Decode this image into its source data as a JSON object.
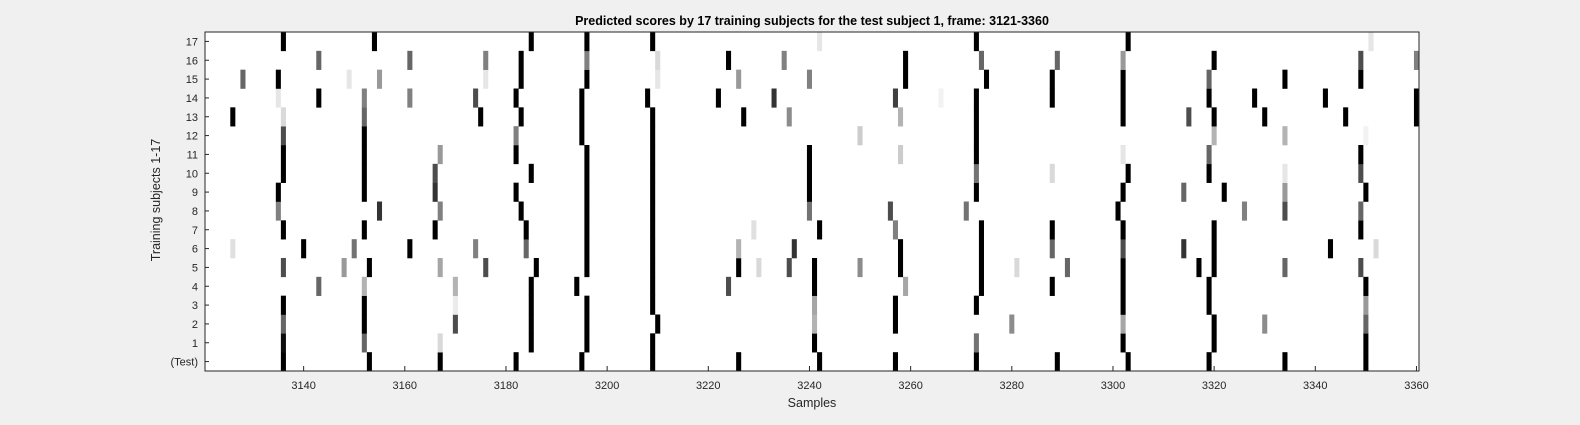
{
  "chart_data": {
    "type": "heatmap",
    "title": "Predicted scores by 17 training subjects for the test subject 1, frame: 3121-3360",
    "xlabel": "Samples",
    "ylabel": "Training subjects 1-17",
    "xlim": [
      3121,
      3360
    ],
    "x_ticks": [
      3140,
      3160,
      3180,
      3200,
      3220,
      3240,
      3260,
      3280,
      3300,
      3320,
      3340,
      3360
    ],
    "rows": [
      "(Test)",
      "1",
      "2",
      "3",
      "4",
      "5",
      "6",
      "7",
      "8",
      "9",
      "10",
      "11",
      "12",
      "13",
      "14",
      "15",
      "16",
      "17"
    ],
    "colormap": "gray (1 = black, 0 = white)",
    "background_color": "#ffffff",
    "cells": [
      {
        "row": "(Test)",
        "marks": [
          [
            3136,
            1
          ],
          [
            3153,
            1
          ],
          [
            3167,
            1
          ],
          [
            3182,
            1
          ],
          [
            3195,
            1
          ],
          [
            3209,
            1
          ],
          [
            3226,
            1
          ],
          [
            3242,
            1
          ],
          [
            3257,
            1
          ],
          [
            3273,
            1
          ],
          [
            3289,
            1
          ],
          [
            3303,
            1
          ],
          [
            3319,
            1
          ],
          [
            3334,
            1
          ],
          [
            3350,
            1
          ]
        ]
      },
      {
        "row": "1",
        "marks": [
          [
            3136,
            0.95
          ],
          [
            3152,
            0.6
          ],
          [
            3167,
            0.15
          ],
          [
            3185,
            1
          ],
          [
            3196,
            1
          ],
          [
            3209,
            1
          ],
          [
            3241,
            1
          ],
          [
            3273,
            0.55
          ],
          [
            3302,
            1
          ],
          [
            3320,
            1
          ],
          [
            3350,
            1
          ]
        ]
      },
      {
        "row": "2",
        "marks": [
          [
            3136,
            0.6
          ],
          [
            3152,
            1
          ],
          [
            3170,
            0.7
          ],
          [
            3185,
            1
          ],
          [
            3196,
            1
          ],
          [
            3210,
            1
          ],
          [
            3241,
            0.3
          ],
          [
            3257,
            1
          ],
          [
            3280,
            0.45
          ],
          [
            3302,
            0.35
          ],
          [
            3320,
            1
          ],
          [
            3330,
            0.45
          ],
          [
            3350,
            0.6
          ]
        ]
      },
      {
        "row": "3",
        "marks": [
          [
            3136,
            1
          ],
          [
            3152,
            1
          ],
          [
            3170,
            0.08
          ],
          [
            3185,
            1
          ],
          [
            3196,
            1
          ],
          [
            3209,
            1
          ],
          [
            3241,
            0.35
          ],
          [
            3257,
            1
          ],
          [
            3273,
            1
          ],
          [
            3302,
            1
          ],
          [
            3319,
            1
          ],
          [
            3350,
            0.4
          ]
        ]
      },
      {
        "row": "4",
        "marks": [
          [
            3143,
            0.6
          ],
          [
            3152,
            0.3
          ],
          [
            3170,
            0.3
          ],
          [
            3185,
            1
          ],
          [
            3194,
            1
          ],
          [
            3209,
            1
          ],
          [
            3224,
            0.7
          ],
          [
            3241,
            1
          ],
          [
            3259,
            0.35
          ],
          [
            3274,
            1
          ],
          [
            3288,
            1
          ],
          [
            3302,
            1
          ],
          [
            3319,
            1
          ],
          [
            3350,
            1
          ]
        ]
      },
      {
        "row": "5",
        "marks": [
          [
            3136,
            0.7
          ],
          [
            3148,
            0.4
          ],
          [
            3153,
            1
          ],
          [
            3167,
            0.35
          ],
          [
            3176,
            0.7
          ],
          [
            3186,
            1
          ],
          [
            3196,
            1
          ],
          [
            3209,
            1
          ],
          [
            3226,
            1
          ],
          [
            3230,
            0.15
          ],
          [
            3236,
            0.7
          ],
          [
            3241,
            1
          ],
          [
            3250,
            0.45
          ],
          [
            3258,
            1
          ],
          [
            3274,
            1
          ],
          [
            3281,
            0.15
          ],
          [
            3291,
            0.6
          ],
          [
            3302,
            1
          ],
          [
            3317,
            1
          ],
          [
            3320,
            1
          ],
          [
            3334,
            0.6
          ],
          [
            3349,
            0.7
          ]
        ]
      },
      {
        "row": "6",
        "marks": [
          [
            3126,
            0.12
          ],
          [
            3140,
            1
          ],
          [
            3150,
            0.55
          ],
          [
            3161,
            1
          ],
          [
            3174,
            0.5
          ],
          [
            3184,
            0.6
          ],
          [
            3196,
            1
          ],
          [
            3209,
            1
          ],
          [
            3226,
            0.3
          ],
          [
            3237,
            0.8
          ],
          [
            3258,
            1
          ],
          [
            3274,
            1
          ],
          [
            3288,
            0.6
          ],
          [
            3302,
            0.7
          ],
          [
            3314,
            0.8
          ],
          [
            3320,
            1
          ],
          [
            3343,
            1
          ],
          [
            3352,
            0.15
          ]
        ]
      },
      {
        "row": "7",
        "marks": [
          [
            3136,
            1
          ],
          [
            3152,
            1
          ],
          [
            3166,
            1
          ],
          [
            3184,
            1
          ],
          [
            3196,
            1
          ],
          [
            3209,
            1
          ],
          [
            3229,
            0.12
          ],
          [
            3242,
            1
          ],
          [
            3257,
            0.5
          ],
          [
            3274,
            1
          ],
          [
            3288,
            1
          ],
          [
            3302,
            1
          ],
          [
            3320,
            1
          ],
          [
            3349,
            1
          ]
        ]
      },
      {
        "row": "8",
        "marks": [
          [
            3135,
            0.5
          ],
          [
            3155,
            0.8
          ],
          [
            3167,
            0.5
          ],
          [
            3183,
            1
          ],
          [
            3196,
            1
          ],
          [
            3209,
            1
          ],
          [
            3240,
            0.55
          ],
          [
            3256,
            0.7
          ],
          [
            3271,
            0.55
          ],
          [
            3301,
            1
          ],
          [
            3326,
            0.5
          ],
          [
            3334,
            0.7
          ],
          [
            3349,
            0.6
          ]
        ]
      },
      {
        "row": "9",
        "marks": [
          [
            3135,
            1
          ],
          [
            3152,
            1
          ],
          [
            3166,
            0.8
          ],
          [
            3182,
            1
          ],
          [
            3196,
            1
          ],
          [
            3209,
            1
          ],
          [
            3240,
            1
          ],
          [
            3273,
            1
          ],
          [
            3302,
            1
          ],
          [
            3314,
            0.6
          ],
          [
            3322,
            1
          ],
          [
            3334,
            0.4
          ],
          [
            3350,
            1
          ]
        ]
      },
      {
        "row": "10",
        "marks": [
          [
            3136,
            1
          ],
          [
            3152,
            1
          ],
          [
            3166,
            0.7
          ],
          [
            3185,
            1
          ],
          [
            3196,
            1
          ],
          [
            3209,
            1
          ],
          [
            3240,
            1
          ],
          [
            3273,
            0.55
          ],
          [
            3288,
            0.15
          ],
          [
            3303,
            1
          ],
          [
            3319,
            1
          ],
          [
            3334,
            0.1
          ],
          [
            3349,
            0.7
          ]
        ]
      },
      {
        "row": "11",
        "marks": [
          [
            3136,
            1
          ],
          [
            3152,
            1
          ],
          [
            3167,
            0.4
          ],
          [
            3182,
            1
          ],
          [
            3196,
            1
          ],
          [
            3209,
            1
          ],
          [
            3240,
            1
          ],
          [
            3258,
            0.2
          ],
          [
            3273,
            1
          ],
          [
            3302,
            0.1
          ],
          [
            3319,
            0.6
          ],
          [
            3349,
            1
          ]
        ]
      },
      {
        "row": "12",
        "marks": [
          [
            3136,
            0.7
          ],
          [
            3152,
            1
          ],
          [
            3182,
            0.5
          ],
          [
            3195,
            1
          ],
          [
            3209,
            1
          ],
          [
            3250,
            0.2
          ],
          [
            3273,
            1
          ],
          [
            3320,
            0.3
          ],
          [
            3334,
            0.3
          ],
          [
            3350,
            0.05
          ]
        ]
      },
      {
        "row": "13",
        "marks": [
          [
            3126,
            1
          ],
          [
            3136,
            0.15
          ],
          [
            3152,
            0.6
          ],
          [
            3175,
            1
          ],
          [
            3183,
            1
          ],
          [
            3195,
            1
          ],
          [
            3209,
            1
          ],
          [
            3227,
            1
          ],
          [
            3236,
            0.45
          ],
          [
            3258,
            0.3
          ],
          [
            3273,
            1
          ],
          [
            3302,
            1
          ],
          [
            3315,
            0.7
          ],
          [
            3320,
            1
          ],
          [
            3330,
            1
          ],
          [
            3346,
            1
          ],
          [
            3360,
            1
          ]
        ]
      },
      {
        "row": "14",
        "marks": [
          [
            3135,
            0.1
          ],
          [
            3143,
            1
          ],
          [
            3152,
            0.5
          ],
          [
            3161,
            0.5
          ],
          [
            3174,
            0.7
          ],
          [
            3182,
            1
          ],
          [
            3195,
            1
          ],
          [
            3208,
            1
          ],
          [
            3222,
            1
          ],
          [
            3233,
            0.8
          ],
          [
            3257,
            0.75
          ],
          [
            3266,
            0.05
          ],
          [
            3273,
            1
          ],
          [
            3288,
            1
          ],
          [
            3302,
            1
          ],
          [
            3319,
            1
          ],
          [
            3328,
            1
          ],
          [
            3342,
            1
          ],
          [
            3360,
            1
          ]
        ]
      },
      {
        "row": "15",
        "marks": [
          [
            3128,
            0.6
          ],
          [
            3135,
            1
          ],
          [
            3149,
            0.1
          ],
          [
            3155,
            0.4
          ],
          [
            3176,
            0.1
          ],
          [
            3183,
            1
          ],
          [
            3196,
            1
          ],
          [
            3210,
            0.1
          ],
          [
            3226,
            0.4
          ],
          [
            3240,
            0.5
          ],
          [
            3259,
            1
          ],
          [
            3275,
            1
          ],
          [
            3288,
            1
          ],
          [
            3302,
            1
          ],
          [
            3319,
            0.6
          ],
          [
            3334,
            1
          ],
          [
            3349,
            1
          ]
        ]
      },
      {
        "row": "16",
        "marks": [
          [
            3143,
            0.6
          ],
          [
            3161,
            0.6
          ],
          [
            3176,
            0.5
          ],
          [
            3183,
            1
          ],
          [
            3196,
            0.5
          ],
          [
            3210,
            0.15
          ],
          [
            3224,
            1
          ],
          [
            3235,
            0.5
          ],
          [
            3259,
            1
          ],
          [
            3274,
            0.6
          ],
          [
            3289,
            0.6
          ],
          [
            3302,
            0.4
          ],
          [
            3320,
            1
          ],
          [
            3349,
            0.7
          ],
          [
            3360,
            0.5
          ]
        ]
      },
      {
        "row": "17",
        "marks": [
          [
            3136,
            1
          ],
          [
            3154,
            1
          ],
          [
            3185,
            1
          ],
          [
            3196,
            1
          ],
          [
            3209,
            1
          ],
          [
            3242,
            0.1
          ],
          [
            3273,
            1
          ],
          [
            3303,
            1
          ],
          [
            3351,
            0.1
          ]
        ]
      }
    ]
  }
}
